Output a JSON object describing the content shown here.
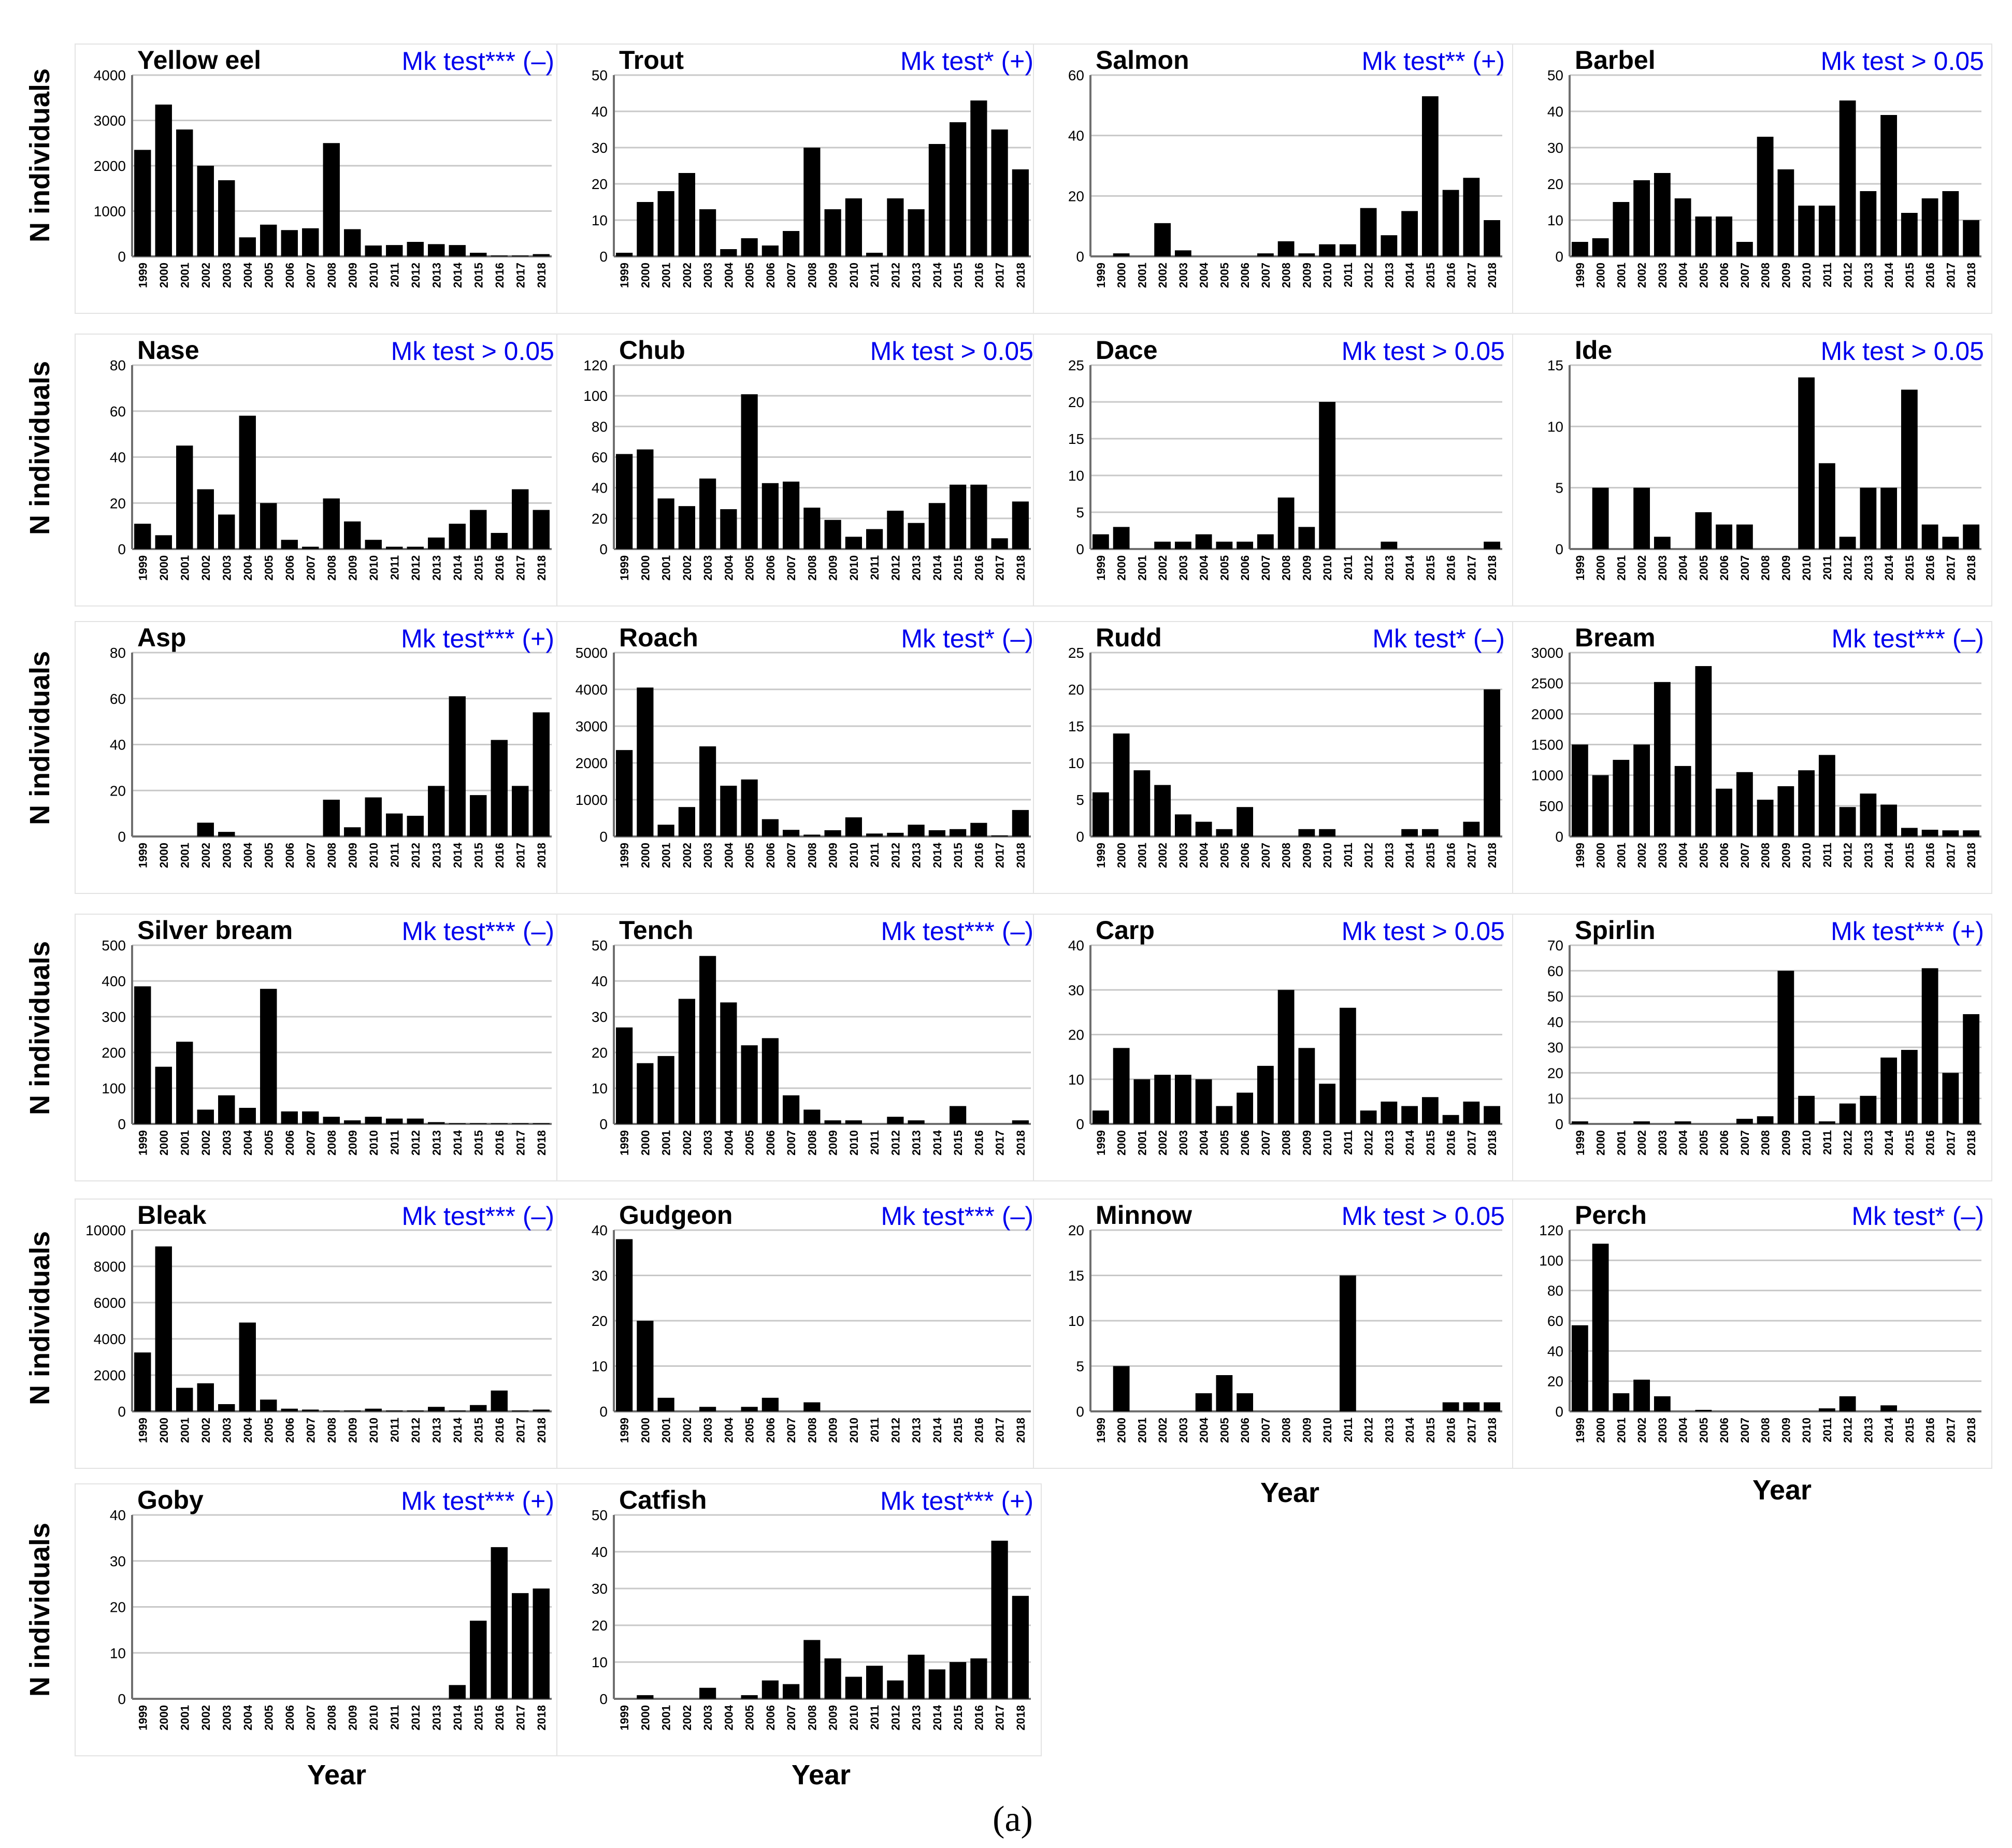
{
  "figure": {
    "caption": "(a)",
    "ylabel": "N individuals",
    "xlabel": "Year",
    "years": [
      "1999",
      "2000",
      "2001",
      "2002",
      "2003",
      "2004",
      "2005",
      "2006",
      "2007",
      "2008",
      "2009",
      "2010",
      "2011",
      "2012",
      "2013",
      "2014",
      "2015",
      "2016",
      "2017",
      "2018"
    ]
  },
  "colors": {
    "bar": "#000000",
    "test_text": "#0000ee",
    "grid": "#c8c8c8"
  },
  "chart_data": [
    {
      "type": "bar",
      "title": "Yellow eel",
      "test": "Mk test*** (–)",
      "ylim": [
        0,
        4000
      ],
      "yticks": [
        0,
        1000,
        2000,
        3000,
        4000
      ],
      "values": [
        2350,
        3350,
        2800,
        2000,
        1680,
        420,
        700,
        580,
        620,
        2500,
        600,
        240,
        250,
        320,
        270,
        250,
        80,
        20,
        20,
        50
      ]
    },
    {
      "type": "bar",
      "title": "Trout",
      "test": "Mk test* (+)",
      "ylim": [
        0,
        50
      ],
      "yticks": [
        0,
        10,
        20,
        30,
        40,
        50
      ],
      "values": [
        1,
        15,
        18,
        23,
        13,
        2,
        5,
        3,
        7,
        30,
        13,
        16,
        1,
        16,
        13,
        31,
        37,
        43,
        35,
        24
      ]
    },
    {
      "type": "bar",
      "title": "Salmon",
      "test": "Mk test** (+)",
      "ylim": [
        0,
        60
      ],
      "yticks": [
        0,
        20,
        40,
        60
      ],
      "values": [
        0,
        1,
        0,
        11,
        2,
        0,
        0,
        0,
        1,
        5,
        1,
        4,
        4,
        16,
        7,
        15,
        53,
        22,
        26,
        12
      ]
    },
    {
      "type": "bar",
      "title": "Barbel",
      "test": "Mk test > 0.05",
      "ylim": [
        0,
        50
      ],
      "yticks": [
        0,
        10,
        20,
        30,
        40,
        50
      ],
      "values": [
        4,
        5,
        15,
        21,
        23,
        16,
        11,
        11,
        4,
        33,
        24,
        14,
        14,
        43,
        18,
        39,
        12,
        16,
        18,
        10
      ]
    },
    {
      "type": "bar",
      "title": "Nase",
      "test": "Mk test > 0.05",
      "ylim": [
        0,
        80
      ],
      "yticks": [
        0,
        20,
        40,
        60,
        80
      ],
      "values": [
        11,
        6,
        45,
        26,
        15,
        58,
        20,
        4,
        1,
        22,
        12,
        4,
        1,
        1,
        5,
        11,
        17,
        7,
        26,
        17
      ]
    },
    {
      "type": "bar",
      "title": "Chub",
      "test": "Mk test > 0.05",
      "ylim": [
        0,
        120
      ],
      "yticks": [
        0,
        20,
        40,
        60,
        80,
        100,
        120
      ],
      "values": [
        62,
        65,
        33,
        28,
        46,
        26,
        101,
        43,
        44,
        27,
        19,
        8,
        13,
        25,
        17,
        30,
        42,
        42,
        7,
        31
      ]
    },
    {
      "type": "bar",
      "title": "Dace",
      "test": "Mk test > 0.05",
      "ylim": [
        0,
        25
      ],
      "yticks": [
        0,
        5,
        10,
        15,
        20,
        25
      ],
      "values": [
        2,
        3,
        0,
        1,
        1,
        2,
        1,
        1,
        2,
        7,
        3,
        20,
        0,
        0,
        1,
        0,
        0,
        0,
        0,
        1
      ]
    },
    {
      "type": "bar",
      "title": "Ide",
      "test": "Mk test > 0.05",
      "ylim": [
        0,
        15
      ],
      "yticks": [
        0,
        5,
        10,
        15
      ],
      "values": [
        0,
        5,
        0,
        5,
        1,
        0,
        3,
        2,
        2,
        0,
        0,
        14,
        7,
        1,
        5,
        5,
        13,
        2,
        1,
        2
      ]
    },
    {
      "type": "bar",
      "title": "Asp",
      "test": "Mk test*** (+)",
      "ylim": [
        0,
        80
      ],
      "yticks": [
        0,
        20,
        40,
        60,
        80
      ],
      "values": [
        0,
        0,
        0,
        6,
        2,
        0,
        0,
        0,
        0,
        16,
        4,
        17,
        10,
        9,
        22,
        61,
        18,
        42,
        22,
        54
      ]
    },
    {
      "type": "bar",
      "title": "Roach",
      "test": "Mk test* (–)",
      "ylim": [
        0,
        5000
      ],
      "yticks": [
        0,
        1000,
        2000,
        3000,
        4000,
        5000
      ],
      "values": [
        2350,
        4050,
        320,
        800,
        2450,
        1380,
        1550,
        470,
        180,
        50,
        170,
        520,
        80,
        100,
        320,
        170,
        200,
        370,
        30,
        720
      ]
    },
    {
      "type": "bar",
      "title": "Rudd",
      "test": "Mk test* (–)",
      "ylim": [
        0,
        25
      ],
      "yticks": [
        0,
        5,
        10,
        15,
        20,
        25
      ],
      "values": [
        6,
        14,
        9,
        7,
        3,
        2,
        1,
        4,
        0,
        0,
        1,
        1,
        0,
        0,
        0,
        1,
        1,
        0,
        2,
        20
      ]
    },
    {
      "type": "bar",
      "title": "Bream",
      "test": "Mk test*** (–)",
      "ylim": [
        0,
        3000
      ],
      "yticks": [
        0,
        500,
        1000,
        1500,
        2000,
        2500,
        3000
      ],
      "values": [
        1500,
        1000,
        1250,
        1500,
        2520,
        1150,
        2780,
        780,
        1050,
        600,
        820,
        1080,
        1330,
        480,
        700,
        520,
        140,
        110,
        100,
        100
      ]
    },
    {
      "type": "bar",
      "title": "Silver bream",
      "test": "Mk test*** (–)",
      "ylim": [
        0,
        500
      ],
      "yticks": [
        0,
        100,
        200,
        300,
        400,
        500
      ],
      "values": [
        385,
        160,
        230,
        40,
        80,
        45,
        378,
        35,
        35,
        20,
        10,
        20,
        15,
        15,
        5,
        2,
        2,
        2,
        2,
        2
      ]
    },
    {
      "type": "bar",
      "title": "Tench",
      "test": "Mk test*** (–)",
      "ylim": [
        0,
        50
      ],
      "yticks": [
        0,
        10,
        20,
        30,
        40,
        50
      ],
      "values": [
        27,
        17,
        19,
        35,
        47,
        34,
        22,
        24,
        8,
        4,
        1,
        1,
        0,
        2,
        1,
        0,
        5,
        0,
        0,
        1
      ]
    },
    {
      "type": "bar",
      "title": "Carp",
      "test": "Mk test > 0.05",
      "ylim": [
        0,
        40
      ],
      "yticks": [
        0,
        10,
        20,
        30,
        40
      ],
      "values": [
        3,
        17,
        10,
        11,
        11,
        10,
        4,
        7,
        13,
        30,
        17,
        9,
        26,
        3,
        5,
        4,
        6,
        2,
        5,
        4
      ]
    },
    {
      "type": "bar",
      "title": "Spirlin",
      "test": "Mk test*** (+)",
      "ylim": [
        0,
        70
      ],
      "yticks": [
        0,
        10,
        20,
        30,
        40,
        50,
        60,
        70
      ],
      "values": [
        1,
        0,
        0,
        1,
        0,
        1,
        0,
        0,
        2,
        3,
        60,
        11,
        1,
        8,
        11,
        26,
        29,
        61,
        20,
        43
      ]
    },
    {
      "type": "bar",
      "title": "Bleak",
      "test": "Mk test*** (–)",
      "ylim": [
        0,
        10000
      ],
      "yticks": [
        0,
        2000,
        4000,
        6000,
        8000,
        10000
      ],
      "values": [
        3250,
        9100,
        1300,
        1550,
        400,
        4900,
        650,
        150,
        100,
        50,
        50,
        150,
        50,
        50,
        250,
        50,
        350,
        1150,
        50,
        100
      ]
    },
    {
      "type": "bar",
      "title": "Gudgeon",
      "test": "Mk test*** (–)",
      "ylim": [
        0,
        40
      ],
      "yticks": [
        0,
        10,
        20,
        30,
        40
      ],
      "values": [
        38,
        20,
        3,
        0,
        1,
        0,
        1,
        3,
        0,
        2,
        0,
        0,
        0,
        0,
        0,
        0,
        0,
        0,
        0,
        0
      ]
    },
    {
      "type": "bar",
      "title": "Minnow",
      "test": "Mk test > 0.05",
      "ylim": [
        0,
        20
      ],
      "yticks": [
        0,
        5,
        10,
        15,
        20
      ],
      "values": [
        0,
        5,
        0,
        0,
        0,
        2,
        4,
        2,
        0,
        0,
        0,
        0,
        15,
        0,
        0,
        0,
        0,
        1,
        1,
        1
      ]
    },
    {
      "type": "bar",
      "title": "Perch",
      "test": "Mk test* (–)",
      "ylim": [
        0,
        120
      ],
      "yticks": [
        0,
        20,
        40,
        60,
        80,
        100,
        120
      ],
      "values": [
        57,
        111,
        12,
        21,
        10,
        0,
        1,
        0,
        0,
        0,
        0,
        0,
        2,
        10,
        0,
        4,
        0,
        0,
        0,
        0
      ]
    },
    {
      "type": "bar",
      "title": "Goby",
      "test": "Mk test*** (+)",
      "ylim": [
        0,
        40
      ],
      "yticks": [
        0,
        10,
        20,
        30,
        40
      ],
      "values": [
        0,
        0,
        0,
        0,
        0,
        0,
        0,
        0,
        0,
        0,
        0,
        0,
        0,
        0,
        0,
        3,
        17,
        33,
        23,
        24
      ]
    },
    {
      "type": "bar",
      "title": "Catfish",
      "test": "Mk test*** (+)",
      "ylim": [
        0,
        50
      ],
      "yticks": [
        0,
        10,
        20,
        30,
        40,
        50
      ],
      "values": [
        0,
        1,
        0,
        0,
        3,
        0,
        1,
        5,
        4,
        16,
        11,
        6,
        9,
        5,
        12,
        8,
        10,
        11,
        43,
        28
      ]
    }
  ]
}
